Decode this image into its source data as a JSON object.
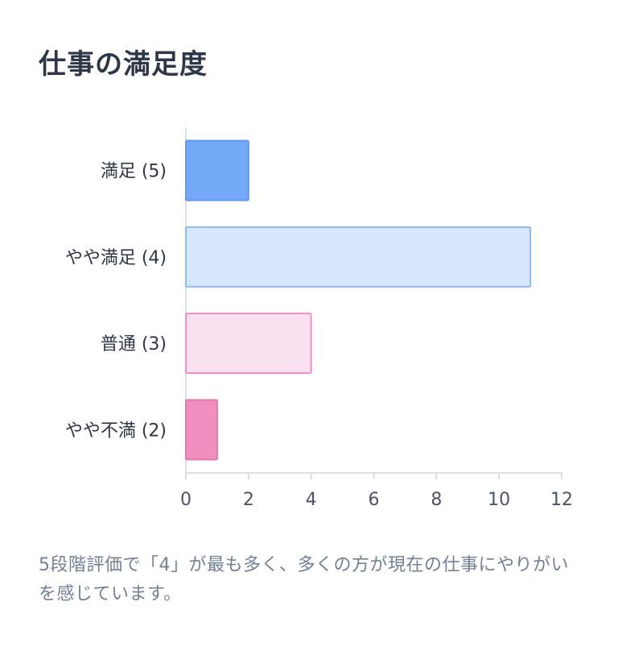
{
  "title": "仕事の満足度",
  "caption": "5段階評価で「4」が最も多く、多くの方が現在の仕事にやりがいを感じています。",
  "chart_data": {
    "type": "bar",
    "orientation": "horizontal",
    "categories": [
      "満足 (5)",
      "やや満足 (4)",
      "普通 (3)",
      "やや不満 (2)"
    ],
    "values": [
      2,
      11,
      4,
      1
    ],
    "xlim": [
      0,
      12
    ],
    "xticks": [
      "0",
      "2",
      "4",
      "6",
      "8",
      "10",
      "12"
    ],
    "grid": false,
    "legend": "none",
    "colors": {
      "fills": [
        "#74a9f7",
        "#d6e7fc",
        "#fbe0ef",
        "#f08ebd"
      ],
      "strokes": [
        "#5f98ef",
        "#8fb8f2",
        "#ee8fbf",
        "#e278ab"
      ],
      "axis": "#cbd5e0",
      "tick_text": "#4a5568",
      "category_text": "#2d3748"
    }
  }
}
